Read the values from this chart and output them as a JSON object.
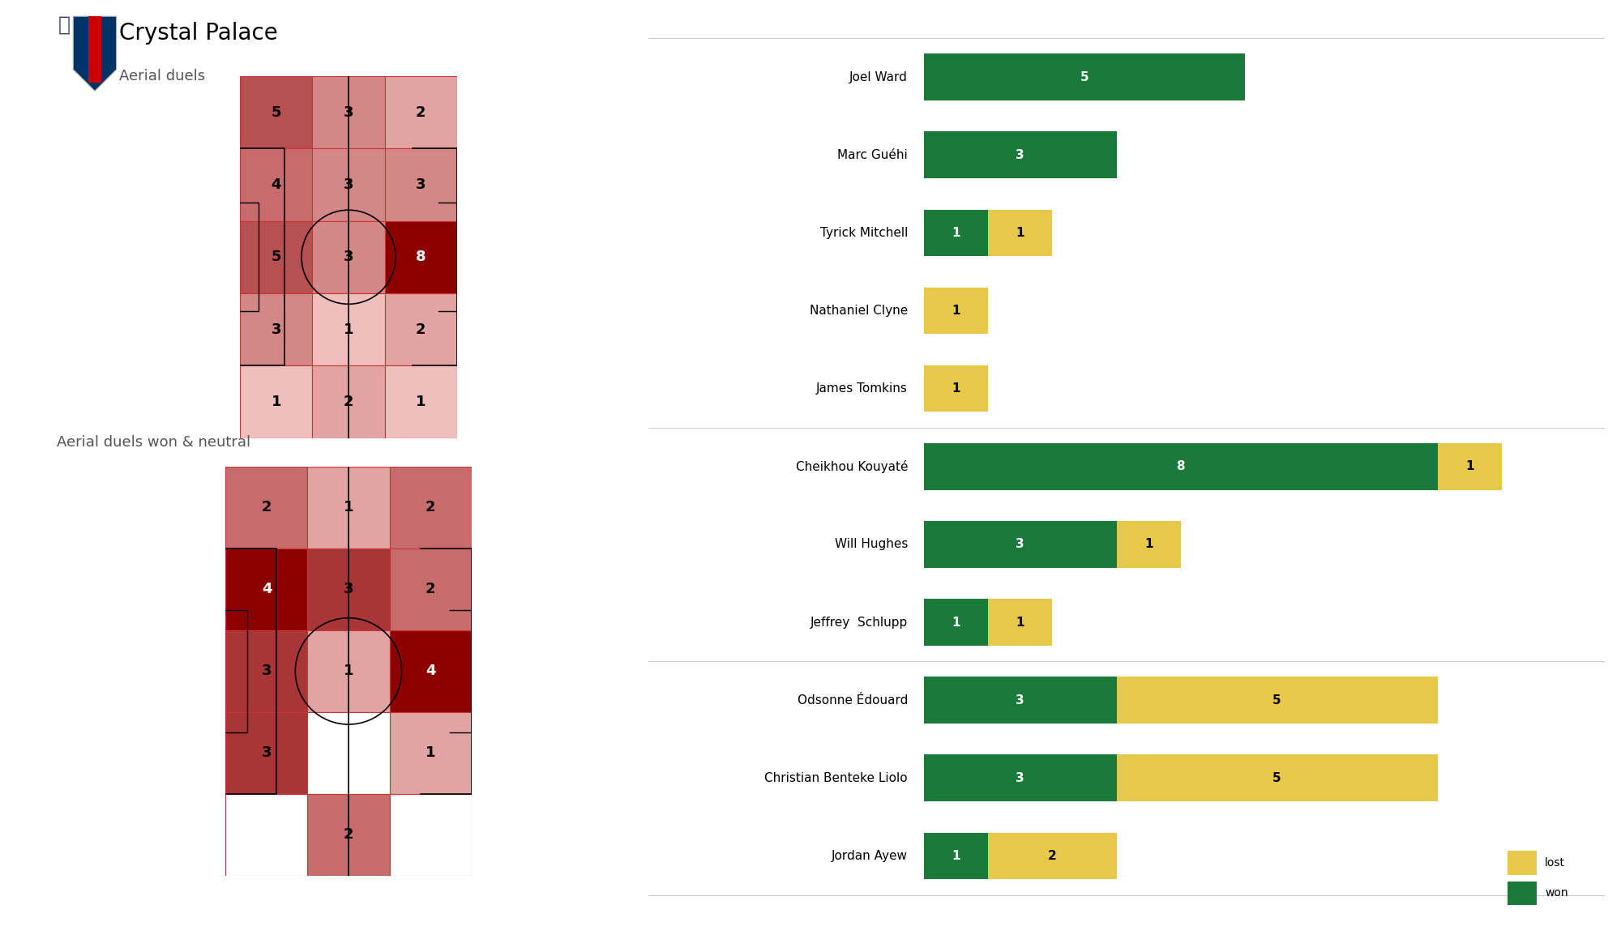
{
  "title": "Crystal Palace",
  "subtitle_heatmap1": "Aerial duels",
  "subtitle_heatmap2": "Aerial duels won & neutral",
  "bg_color": "#ffffff",
  "heatmap1_grid": [
    [
      5,
      3,
      2
    ],
    [
      4,
      3,
      3
    ],
    [
      5,
      3,
      8
    ],
    [
      3,
      1,
      2
    ],
    [
      1,
      2,
      1
    ]
  ],
  "heatmap2_grid": [
    [
      2,
      1,
      2
    ],
    [
      4,
      3,
      2
    ],
    [
      3,
      1,
      4
    ],
    [
      3,
      0,
      1
    ],
    [
      0,
      2,
      0
    ]
  ],
  "players": [
    "Joel Ward",
    "Marc Guéhi",
    "Tyrick Mitchell",
    "Nathaniel Clyne",
    "James Tomkins",
    "Cheikhou Kouyaté",
    "Will Hughes",
    "Jeffrey  Schlupp",
    "Odsonne Édouard",
    "Christian Benteke Liolo",
    "Jordan Ayew"
  ],
  "won": [
    5,
    3,
    1,
    0,
    0,
    8,
    3,
    1,
    3,
    3,
    1
  ],
  "lost": [
    0,
    0,
    1,
    1,
    1,
    1,
    1,
    1,
    5,
    5,
    2
  ],
  "color_won": "#1a7a3c",
  "color_lost": "#e8c84a",
  "separator_after_indices": [
    4,
    7
  ],
  "heatmap1_max": 8,
  "heatmap2_max": 4,
  "color_low": [
    1.0,
    0.85,
    0.85
  ],
  "color_high": [
    0.55,
    0.0,
    0.0
  ]
}
